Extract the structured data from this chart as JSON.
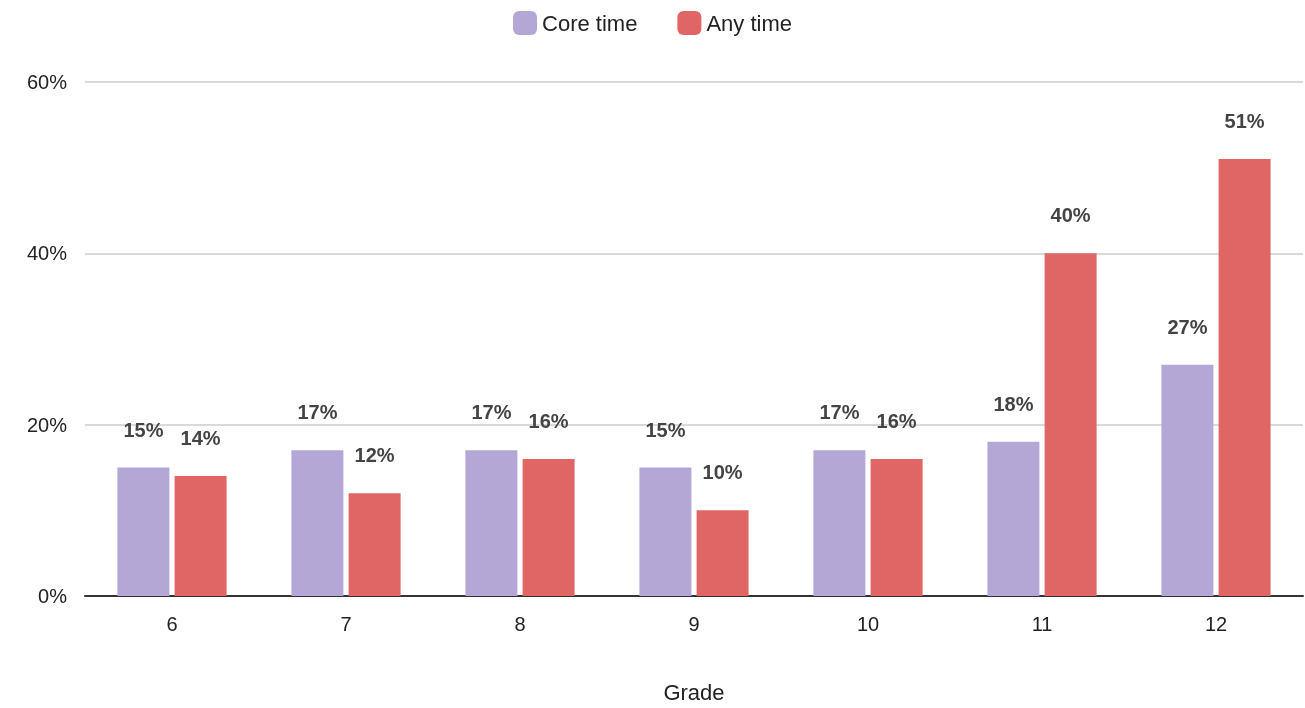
{
  "chart_data": {
    "type": "bar",
    "xlabel": "Grade",
    "categories": [
      "6",
      "7",
      "8",
      "9",
      "10",
      "11",
      "12"
    ],
    "series": [
      {
        "name": "Core time",
        "color": "#b4a7d6",
        "values": [
          15,
          17,
          17,
          15,
          17,
          18,
          27
        ],
        "value_labels": [
          "15%",
          "17%",
          "17%",
          "15%",
          "17%",
          "18%",
          "27%"
        ]
      },
      {
        "name": "Any time",
        "color": "#e06666",
        "values": [
          14,
          12,
          16,
          10,
          16,
          40,
          51
        ],
        "value_labels": [
          "14%",
          "12%",
          "16%",
          "10%",
          "16%",
          "40%",
          "51%"
        ]
      }
    ],
    "ylim": [
      0,
      60
    ],
    "yticks": [
      {
        "value": 0,
        "label": "0%"
      },
      {
        "value": 20,
        "label": "20%"
      },
      {
        "value": 40,
        "label": "40%"
      },
      {
        "value": 60,
        "label": "60%"
      }
    ],
    "grid": "y",
    "legend": "top"
  }
}
